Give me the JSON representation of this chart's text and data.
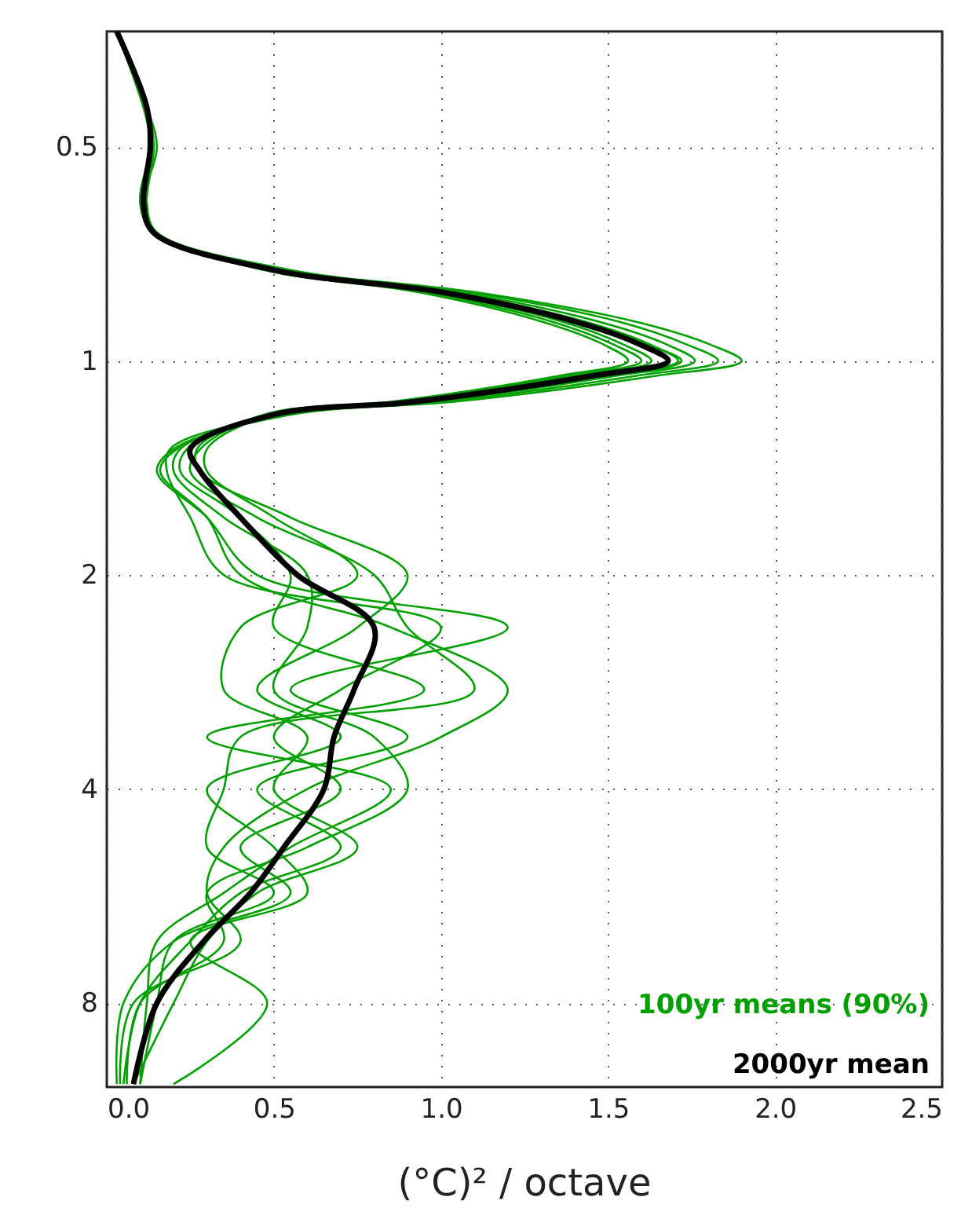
{
  "chart_data": {
    "type": "line",
    "orientation": "horizontal",
    "xlabel": "(°C)² / octave",
    "log": "y",
    "grid": true,
    "legend": "bottom right",
    "line_style": "solid",
    "marker": "none",
    "xlim": [
      0,
      2.5
    ],
    "xticks": [
      {
        "value": 0,
        "label": "0.0"
      },
      0.5,
      {
        "value": 1,
        "label": "1.0"
      },
      1.5,
      {
        "value": 2,
        "label": "2.0"
      },
      2.5
    ],
    "ylim": [
      10.5,
      0.344
    ],
    "yticks": [
      0.5,
      1,
      2,
      4,
      8
    ],
    "x": [
      0.344,
      0.44,
      0.5,
      0.6,
      0.66,
      0.745,
      0.8,
      0.88,
      0.95,
      1.0,
      1.05,
      1.14,
      1.19,
      1.33,
      1.43,
      1.66,
      2,
      2.37,
      2.9,
      3.38,
      4,
      4.83,
      5.6,
      6.55,
      8,
      10.4
    ],
    "series": [
      {
        "name": "100yr means (90%)",
        "color": "#00a000",
        "values": [
          0.03,
          0.12,
          0.14,
          0.11,
          0.15,
          0.55,
          1.1,
          1.58,
          1.81,
          1.9,
          1.64,
          1.05,
          0.55,
          0.2,
          0.15,
          0.3,
          0.45,
          1.2,
          0.55,
          0.9,
          0.45,
          0.7,
          0.4,
          0.25,
          0.1,
          0.05
        ]
      },
      {
        "color": "#00a000",
        "values": [
          0.03,
          0.12,
          0.13,
          0.11,
          0.14,
          0.47,
          0.93,
          1.3,
          1.49,
          1.56,
          1.35,
          0.86,
          0.47,
          0.28,
          0.25,
          0.45,
          0.8,
          0.9,
          1.1,
          0.4,
          0.35,
          0.3,
          0.5,
          0.2,
          0.15,
          0.1
        ]
      },
      {
        "color": "#00a000",
        "values": [
          0.03,
          0.11,
          0.14,
          0.12,
          0.15,
          0.52,
          1.05,
          1.47,
          1.68,
          1.76,
          1.52,
          0.98,
          0.52,
          0.22,
          0.2,
          0.35,
          0.6,
          0.6,
          0.5,
          0.8,
          0.9,
          0.6,
          0.3,
          0.35,
          0.1,
          0.06
        ]
      },
      {
        "color": "#00a000",
        "values": [
          0.03,
          0.12,
          0.13,
          0.1,
          0.14,
          0.49,
          0.97,
          1.36,
          1.55,
          1.63,
          1.41,
          0.9,
          0.49,
          0.3,
          0.3,
          0.5,
          0.75,
          0.4,
          0.35,
          0.6,
          0.5,
          0.75,
          0.45,
          0.3,
          0.2,
          0.08
        ]
      },
      {
        "color": "#00a000",
        "values": [
          0.03,
          0.12,
          0.15,
          0.11,
          0.15,
          0.54,
          1.08,
          1.53,
          1.74,
          1.83,
          1.58,
          1.01,
          0.54,
          0.19,
          0.18,
          0.25,
          0.35,
          1.0,
          0.7,
          0.5,
          0.7,
          0.4,
          0.55,
          0.2,
          0.05,
          0.03
        ]
      },
      {
        "color": "#00a000",
        "values": [
          0.03,
          0.12,
          0.13,
          0.11,
          0.14,
          0.5,
          1.0,
          1.4,
          1.62,
          1.72,
          1.5,
          0.96,
          0.5,
          0.24,
          0.22,
          0.4,
          0.55,
          0.5,
          0.95,
          0.3,
          0.85,
          0.55,
          0.35,
          0.15,
          0.12,
          0.1
        ]
      },
      {
        "color": "#00a000",
        "values": [
          0.03,
          0.11,
          0.13,
          0.1,
          0.14,
          0.48,
          0.95,
          1.33,
          1.52,
          1.6,
          1.38,
          0.88,
          0.48,
          0.27,
          0.28,
          0.55,
          0.9,
          0.75,
          0.45,
          0.7,
          0.3,
          0.5,
          0.6,
          0.25,
          0.48,
          0.2
        ]
      },
      {
        "color": "#00a000",
        "values": [
          0.03,
          0.12,
          0.14,
          0.11,
          0.15,
          0.51,
          1.02,
          1.43,
          1.63,
          1.71,
          1.48,
          0.95,
          0.51,
          0.21,
          0.16,
          0.3,
          0.4,
          0.85,
          1.2,
          1.0,
          0.6,
          0.35,
          0.3,
          0.4,
          0.08,
          0.04
        ]
      },
      {
        "name": "2000yr mean",
        "color": "#000000",
        "values": [
          0.03,
          0.12,
          0.13,
          0.11,
          0.14,
          0.5,
          1.0,
          1.4,
          1.6,
          1.68,
          1.45,
          0.93,
          0.5,
          0.25,
          0.28,
          0.4,
          0.57,
          0.8,
          0.74,
          0.68,
          0.65,
          0.53,
          0.43,
          0.29,
          0.15,
          0.08
        ]
      }
    ]
  }
}
